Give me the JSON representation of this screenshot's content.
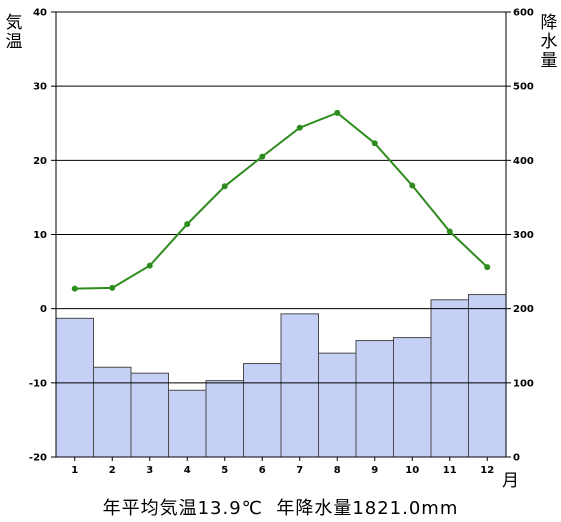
{
  "chart_data": {
    "type": "climograph",
    "months": [
      "1",
      "2",
      "3",
      "4",
      "5",
      "6",
      "7",
      "8",
      "9",
      "10",
      "11",
      "12"
    ],
    "temperature": {
      "unit": "°C",
      "values": [
        2.7,
        2.8,
        5.8,
        11.4,
        16.5,
        20.5,
        24.4,
        26.4,
        22.3,
        16.6,
        10.4,
        5.6
      ],
      "color": "#2e8b1e",
      "axis_label": "気温",
      "ylim": [
        -20,
        40
      ],
      "ticks": [
        "-20",
        "-10",
        "0",
        "10",
        "20",
        "30",
        "40"
      ]
    },
    "precipitation": {
      "unit": "mm",
      "values": [
        187,
        121,
        113,
        90,
        103,
        126,
        193,
        140,
        157,
        161,
        212,
        219
      ],
      "bar_color": "#c6d0f7",
      "bar_edge": "#4a4a4a",
      "axis_label": "降水量",
      "ylim": [
        0,
        600
      ],
      "ticks": [
        "0",
        "100",
        "200",
        "300",
        "400",
        "500",
        "600"
      ]
    },
    "x_unit_label": "月",
    "grid": true
  },
  "summary": "年平均気温13.9℃  年降水量1821.0mm"
}
